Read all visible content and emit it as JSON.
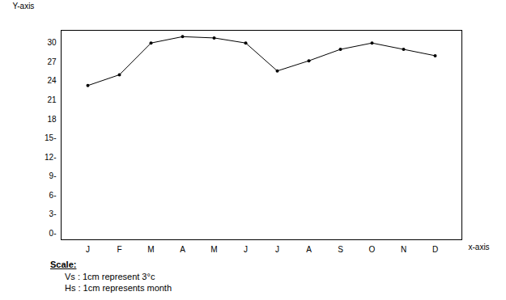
{
  "chart_data": {
    "type": "line",
    "x_label": "x-axis",
    "y_label": "Y-axis",
    "categories": [
      "J",
      "F",
      "M",
      "A",
      "M",
      "J",
      "J",
      "A",
      "S",
      "O",
      "N",
      "D"
    ],
    "values": [
      23.3,
      25,
      30,
      31,
      30.8,
      30,
      25.6,
      27.2,
      29,
      30,
      29,
      28
    ],
    "color": "#000000",
    "marker": "dot",
    "ylim": [
      -1,
      32
    ],
    "yticks": [
      {
        "value": 0,
        "label": "0-"
      },
      {
        "value": 3,
        "label": "3-"
      },
      {
        "value": 6,
        "label": "6-"
      },
      {
        "value": 9,
        "label": "9-"
      },
      {
        "value": 12,
        "label": "12-"
      },
      {
        "value": 15,
        "label": "15-"
      },
      18,
      21,
      24,
      27,
      30
    ],
    "grid": false,
    "caption": {
      "heading": "Scale:",
      "lines": [
        "Vs : 1cm represent 3°c",
        "Hs : 1cm represents month"
      ]
    }
  }
}
